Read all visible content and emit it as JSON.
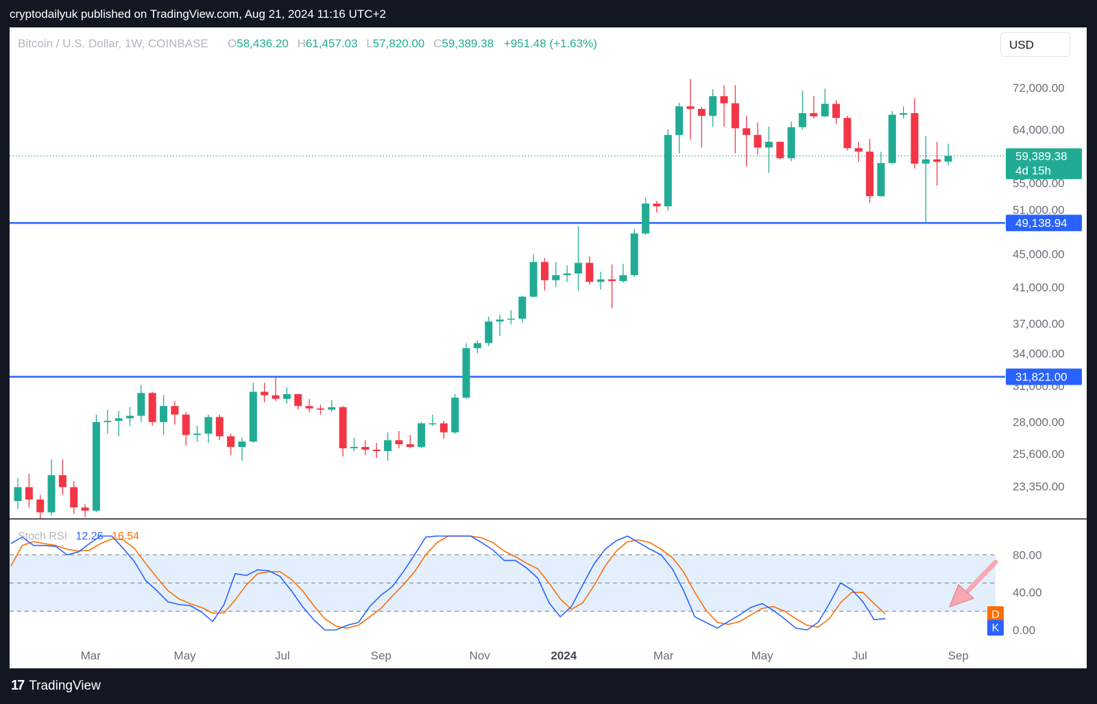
{
  "banner": {
    "text": "cryptodailyuk published on TradingView.com, Aug 21, 2024 11:16 UTC+2"
  },
  "footer": {
    "brand": "TradingView",
    "logo_mark": "17"
  },
  "header": {
    "symbol": "Bitcoin / U.S. Dollar, 1W, COINBASE",
    "o_label": "O",
    "o_value": "58,436.20",
    "h_label": "H",
    "h_value": "61,457.03",
    "l_label": "L",
    "l_value": "57,820.00",
    "c_label": "C",
    "c_value": "59,389.38",
    "change": "+951.48 (+1.63%)",
    "currency_button": "USD"
  },
  "price_badge": {
    "price": "59,389.38",
    "countdown": "4d 15h"
  },
  "levels": [
    {
      "value": 49138.94,
      "label": "49,138.94"
    },
    {
      "value": 31821.0,
      "label": "31,821.00"
    }
  ],
  "y_ticks": [
    "72,000.00",
    "64,000.00",
    "55,000.00",
    "51,000.00",
    "45,000.00",
    "41,000.00",
    "37,000.00",
    "34,000.00",
    "31,000.00",
    "28,000.00",
    "25,600.00",
    "23,350.00"
  ],
  "y_tick_values": [
    72000,
    64000,
    55000,
    51000,
    45000,
    41000,
    37000,
    34000,
    31000,
    28000,
    25600,
    23350
  ],
  "x_ticks": [
    {
      "label": "Mar",
      "week": 6.5,
      "bold": false
    },
    {
      "label": "May",
      "week": 14.9,
      "bold": false
    },
    {
      "label": "Jul",
      "week": 23.6,
      "bold": false
    },
    {
      "label": "Sep",
      "week": 32.4,
      "bold": false
    },
    {
      "label": "Nov",
      "week": 41.2,
      "bold": false
    },
    {
      "label": "2024",
      "week": 48.7,
      "bold": true
    },
    {
      "label": "Mar",
      "week": 57.6,
      "bold": false
    },
    {
      "label": "May",
      "week": 66.4,
      "bold": false
    },
    {
      "label": "Jul",
      "week": 75.1,
      "bold": false
    },
    {
      "label": "Sep",
      "week": 83.9,
      "bold": false
    }
  ],
  "colors": {
    "up": "#22ab94",
    "down": "#f23645",
    "level": "#2962ff",
    "k_line": "#2962ff",
    "d_line": "#ff6d00",
    "rsi_band": "#e3effd",
    "arrow": "#f7a9b2"
  },
  "stoch": {
    "title": "Stoch RSI",
    "k_value": "12.26",
    "d_value": "16.54",
    "ticks": [
      "80.00",
      "40.00",
      "0.00"
    ],
    "tick_values": [
      80,
      40,
      0
    ],
    "k_badge": "K",
    "d_badge": "D"
  },
  "chart_data": [
    {
      "type": "candlestick",
      "title": "Bitcoin / U.S. Dollar, 1W, COINBASE",
      "y_scale": "log",
      "ylim": [
        21800,
        76000
      ],
      "x_unit": "week index",
      "candles": [
        [
          0,
          22400,
          23300,
          21900,
          23900
        ],
        [
          1,
          23300,
          22500,
          22000,
          24200
        ],
        [
          2,
          22500,
          21700,
          21300,
          22800
        ],
        [
          3,
          21700,
          24100,
          21500,
          25200
        ],
        [
          4,
          24100,
          23300,
          22800,
          25200
        ],
        [
          5,
          23300,
          22000,
          21600,
          23700
        ],
        [
          6,
          22000,
          21800,
          21400,
          22200
        ],
        [
          7,
          21800,
          28000,
          21700,
          28600
        ],
        [
          8,
          28000,
          28100,
          27100,
          29000
        ],
        [
          9,
          28100,
          28300,
          26900,
          28900
        ],
        [
          10,
          28300,
          28500,
          27700,
          29200
        ],
        [
          11,
          28500,
          30400,
          28000,
          31100
        ],
        [
          12,
          30400,
          28000,
          27700,
          30500
        ],
        [
          13,
          28000,
          29300,
          27000,
          30200
        ],
        [
          14,
          29300,
          28600,
          27800,
          29700
        ],
        [
          15,
          28600,
          27000,
          26200,
          28800
        ],
        [
          16,
          27000,
          27100,
          26500,
          27700
        ],
        [
          17,
          27100,
          28400,
          26400,
          28600
        ],
        [
          18,
          28400,
          26900,
          26600,
          28600
        ],
        [
          19,
          26900,
          26100,
          25500,
          27100
        ],
        [
          20,
          26100,
          26500,
          25100,
          26800
        ],
        [
          21,
          26500,
          30500,
          26400,
          31300
        ],
        [
          22,
          30500,
          30200,
          29600,
          31300
        ],
        [
          23,
          30200,
          29900,
          29700,
          31800
        ],
        [
          24,
          29900,
          30300,
          29500,
          30900
        ],
        [
          25,
          30300,
          29300,
          29000,
          30300
        ],
        [
          26,
          29300,
          29100,
          28800,
          29900
        ],
        [
          27,
          29100,
          29000,
          28600,
          29400
        ],
        [
          28,
          29000,
          29200,
          28800,
          29800
        ],
        [
          29,
          29200,
          26000,
          25400,
          29300
        ],
        [
          30,
          26000,
          26100,
          25800,
          26800
        ],
        [
          31,
          26100,
          25900,
          25500,
          26600
        ],
        [
          32,
          25900,
          25800,
          25300,
          26400
        ],
        [
          33,
          25800,
          26600,
          25100,
          27200
        ],
        [
          34,
          26600,
          26300,
          26000,
          27300
        ],
        [
          35,
          26300,
          26100,
          26000,
          27000
        ],
        [
          36,
          26100,
          27900,
          26000,
          28000
        ],
        [
          37,
          27900,
          27900,
          27700,
          28600
        ],
        [
          38,
          27900,
          27200,
          26700,
          28100
        ],
        [
          39,
          27200,
          30000,
          27100,
          30300
        ],
        [
          40,
          30000,
          34500,
          29900,
          35000
        ],
        [
          41,
          34500,
          35000,
          34000,
          35300
        ],
        [
          42,
          35000,
          37200,
          34700,
          37700
        ],
        [
          43,
          37200,
          37400,
          35700,
          37900
        ],
        [
          44,
          37400,
          37500,
          36900,
          38400
        ],
        [
          45,
          37500,
          39900,
          37100,
          40000
        ],
        [
          46,
          39900,
          44000,
          39800,
          45000
        ],
        [
          47,
          44000,
          41800,
          40600,
          44500
        ],
        [
          48,
          41800,
          42400,
          41000,
          44000
        ],
        [
          49,
          42400,
          42600,
          41600,
          43600
        ],
        [
          50,
          42600,
          43900,
          40600,
          48700
        ],
        [
          51,
          43900,
          41600,
          41300,
          44700
        ],
        [
          52,
          41600,
          41900,
          40700,
          42800
        ],
        [
          53,
          41900,
          41700,
          38600,
          43700
        ],
        [
          54,
          41700,
          42400,
          41500,
          43800
        ],
        [
          55,
          42400,
          47700,
          42200,
          48300
        ],
        [
          56,
          47700,
          51900,
          47500,
          52800
        ],
        [
          57,
          51900,
          51500,
          50600,
          52300
        ],
        [
          58,
          51500,
          63000,
          50900,
          64000
        ],
        [
          59,
          63000,
          68300,
          59800,
          69000
        ],
        [
          60,
          68300,
          67800,
          62200,
          73800
        ],
        [
          61,
          67800,
          66500,
          60800,
          68200
        ],
        [
          62,
          66500,
          70300,
          64500,
          71700
        ],
        [
          63,
          70300,
          68900,
          64500,
          72500
        ],
        [
          64,
          68900,
          64200,
          59800,
          72500
        ],
        [
          65,
          64200,
          63000,
          57600,
          66500
        ],
        [
          66,
          63000,
          60800,
          59600,
          65300
        ],
        [
          67,
          60800,
          61800,
          56600,
          64500
        ],
        [
          68,
          61800,
          59000,
          58800,
          61800
        ],
        [
          69,
          59000,
          64400,
          58500,
          65400
        ],
        [
          70,
          64400,
          67000,
          64000,
          71400
        ],
        [
          71,
          67000,
          66400,
          66000,
          70300
        ],
        [
          72,
          66400,
          68800,
          66300,
          71800
        ],
        [
          73,
          68800,
          66100,
          65000,
          69500
        ],
        [
          74,
          66100,
          60700,
          60300,
          66500
        ],
        [
          75,
          60700,
          60100,
          58400,
          61800
        ],
        [
          76,
          60100,
          53000,
          52000,
          62300
        ],
        [
          77,
          53000,
          58200,
          52900,
          60100
        ],
        [
          78,
          58200,
          66700,
          58000,
          67400
        ],
        [
          79,
          66700,
          67000,
          66000,
          68300
        ],
        [
          80,
          67000,
          58100,
          57300,
          69900
        ],
        [
          81,
          58100,
          58800,
          49138.94,
          62800
        ],
        [
          82,
          58800,
          58400,
          54600,
          61800
        ],
        [
          83,
          58436.2,
          59389.38,
          57820,
          61457.03
        ]
      ]
    },
    {
      "type": "line",
      "title": "Stoch RSI",
      "ylim": [
        0,
        100
      ],
      "series": [
        {
          "name": "K",
          "values": [
            92,
            99,
            90,
            90,
            89,
            80,
            83,
            92,
            100,
            100,
            87,
            73,
            53,
            42,
            30,
            27,
            26,
            19,
            9,
            27,
            60,
            58,
            64,
            63,
            57,
            42,
            25,
            11,
            0,
            0,
            5,
            8,
            25,
            37,
            46,
            62,
            80,
            99,
            100,
            100,
            100,
            100,
            93,
            85,
            74,
            74,
            66,
            55,
            29,
            14,
            25,
            48,
            70,
            86,
            95,
            100,
            93,
            86,
            80,
            65,
            42,
            14,
            8,
            2,
            9,
            16,
            24,
            28,
            21,
            12,
            2,
            0,
            8,
            28,
            50,
            43,
            30,
            11,
            12
          ]
        },
        {
          "name": "D",
          "values": [
            68,
            90,
            94,
            92,
            90,
            86,
            84,
            85,
            92,
            97,
            96,
            87,
            71,
            56,
            42,
            33,
            28,
            24,
            18,
            18,
            32,
            48,
            60,
            62,
            62,
            54,
            42,
            26,
            12,
            4,
            2,
            5,
            14,
            23,
            36,
            48,
            62,
            80,
            93,
            100,
            100,
            100,
            98,
            93,
            84,
            78,
            71,
            65,
            50,
            33,
            22,
            29,
            47,
            68,
            84,
            94,
            96,
            93,
            86,
            77,
            62,
            40,
            21,
            8,
            6,
            9,
            16,
            23,
            25,
            20,
            12,
            5,
            3,
            12,
            29,
            40,
            40,
            28,
            17
          ]
        }
      ]
    }
  ]
}
